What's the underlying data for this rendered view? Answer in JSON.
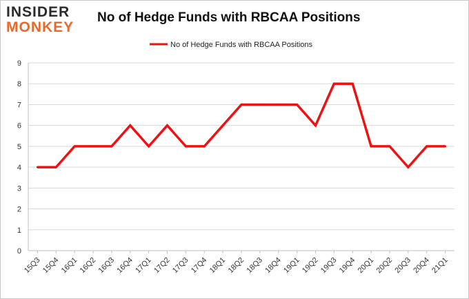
{
  "logo": {
    "top": "INSIDER",
    "bottom": "MONKEY"
  },
  "chart_data": {
    "type": "line",
    "title": "No of Hedge Funds with RBCAA Positions",
    "xlabel": "",
    "ylabel": "",
    "categories": [
      "15Q3",
      "15Q4",
      "16Q1",
      "16Q2",
      "16Q3",
      "16Q4",
      "17Q1",
      "17Q2",
      "17Q3",
      "17Q4",
      "18Q1",
      "18Q2",
      "18Q3",
      "18Q4",
      "19Q1",
      "19Q2",
      "19Q3",
      "19Q4",
      "20Q1",
      "20Q2",
      "20Q3",
      "20Q4",
      "21Q1"
    ],
    "series": [
      {
        "name": "No of Hedge Funds with RBCAA Positions",
        "color": "#ee1111",
        "values": [
          4,
          4,
          5,
          5,
          5,
          6,
          5,
          6,
          5,
          5,
          6,
          7,
          7,
          7,
          7,
          6,
          8,
          8,
          5,
          5,
          4,
          5,
          5
        ]
      }
    ],
    "ylim": [
      0,
      9
    ],
    "yticks": [
      0,
      1,
      2,
      3,
      4,
      5,
      6,
      7,
      8,
      9
    ],
    "grid": true,
    "legend_position": "top-center"
  }
}
